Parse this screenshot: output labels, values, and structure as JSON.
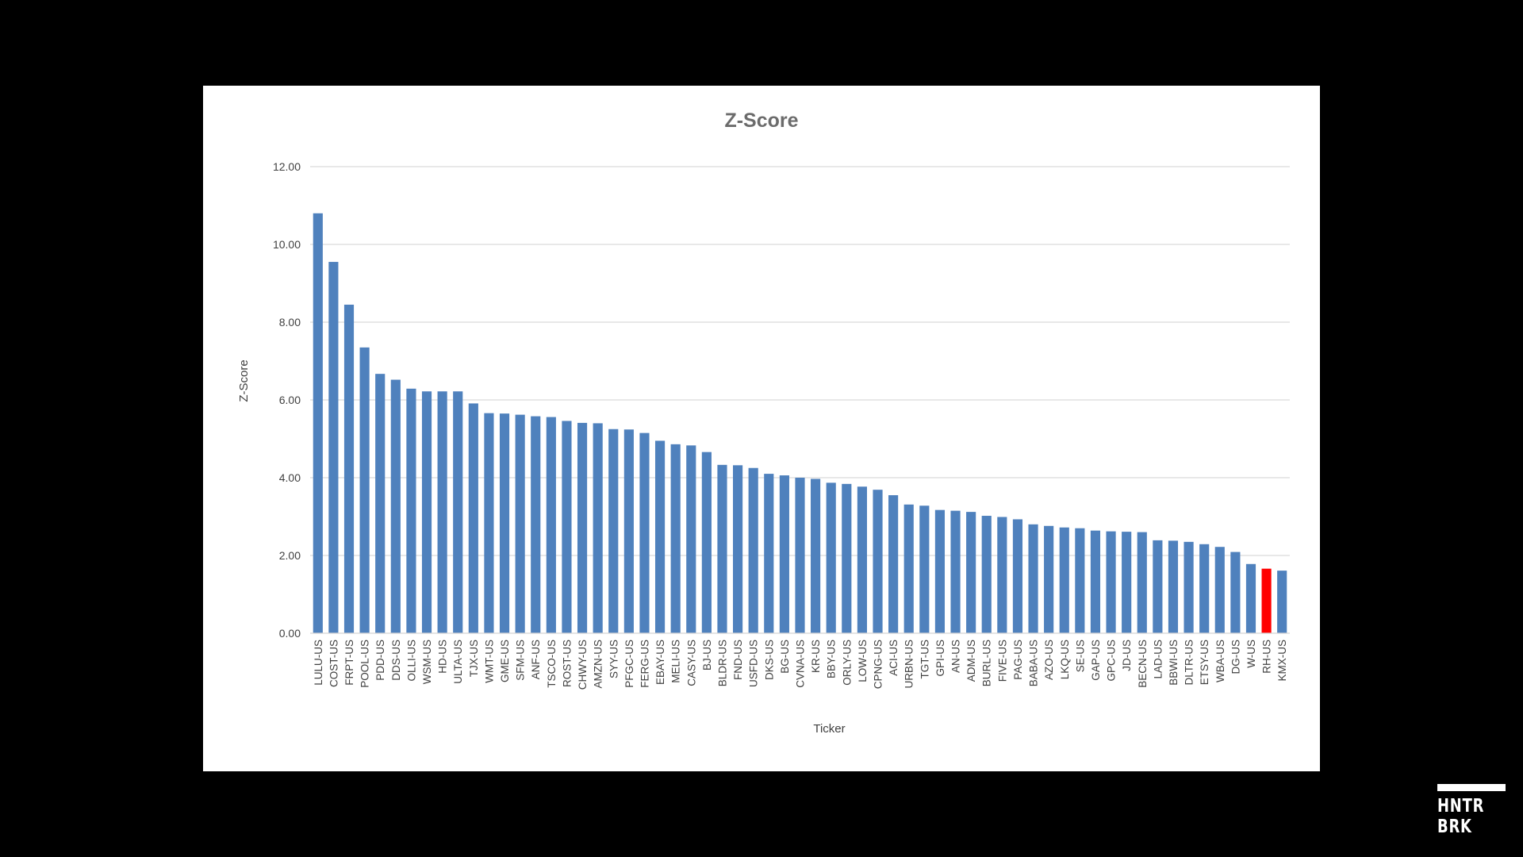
{
  "brand": {
    "line1": "HNTR",
    "line2": "BRK"
  },
  "colors": {
    "background": "#000000",
    "panel": "#ffffff",
    "bar": "#4f81bd",
    "highlight": "#ff0000",
    "grid": "#d9d9d9",
    "axis_text": "#404040",
    "title": "#6b6b6b"
  },
  "chart_data": {
    "type": "bar",
    "title": "Z-Score",
    "xlabel": "Ticker",
    "ylabel": "Z-Score",
    "ylim": [
      0,
      12
    ],
    "y_ticks": [
      "0.00",
      "2.00",
      "4.00",
      "6.00",
      "8.00",
      "10.00",
      "12.00"
    ],
    "grid": true,
    "legend": "none",
    "highlighted_category": "RH-US",
    "categories": [
      "LULU-US",
      "COST-US",
      "FRPT-US",
      "POOL-US",
      "PDD-US",
      "DDS-US",
      "OLLI-US",
      "WSM-US",
      "HD-US",
      "ULTA-US",
      "TJX-US",
      "WMT-US",
      "GME-US",
      "SFM-US",
      "ANF-US",
      "TSCO-US",
      "ROST-US",
      "CHWY-US",
      "AMZN-US",
      "SYY-US",
      "PFGC-US",
      "FERG-US",
      "EBAY-US",
      "MELI-US",
      "CASY-US",
      "BJ-US",
      "BLDR-US",
      "FND-US",
      "USFD-US",
      "DKS-US",
      "BG-US",
      "CVNA-US",
      "KR-US",
      "BBY-US",
      "ORLY-US",
      "LOW-US",
      "CPNG-US",
      "ACI-US",
      "URBN-US",
      "TGT-US",
      "GPI-US",
      "AN-US",
      "ADM-US",
      "BURL-US",
      "FIVE-US",
      "PAG-US",
      "BABA-US",
      "AZO-US",
      "LKQ-US",
      "SE-US",
      "GAP-US",
      "GPC-US",
      "JD-US",
      "BECN-US",
      "LAD-US",
      "BBWI-US",
      "DLTR-US",
      "ETSY-US",
      "WBA-US",
      "DG-US",
      "W-US",
      "RH-US",
      "KMX-US"
    ],
    "values": [
      10.8,
      9.55,
      8.45,
      7.35,
      6.67,
      6.52,
      6.29,
      6.22,
      6.22,
      6.22,
      5.91,
      5.66,
      5.65,
      5.62,
      5.58,
      5.56,
      5.46,
      5.41,
      5.4,
      5.25,
      5.24,
      5.15,
      4.95,
      4.86,
      4.83,
      4.66,
      4.33,
      4.32,
      4.25,
      4.1,
      4.06,
      4.0,
      3.97,
      3.87,
      3.84,
      3.77,
      3.69,
      3.55,
      3.31,
      3.28,
      3.17,
      3.15,
      3.12,
      3.02,
      2.99,
      2.93,
      2.8,
      2.76,
      2.72,
      2.7,
      2.64,
      2.62,
      2.61,
      2.6,
      2.39,
      2.38,
      2.35,
      2.29,
      2.22,
      2.09,
      1.78,
      1.66,
      1.61
    ]
  }
}
